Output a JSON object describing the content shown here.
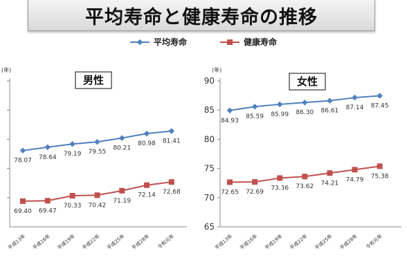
{
  "title": "平均寿命と健康寿命の推移",
  "legend": {
    "avg_label": "平均寿命",
    "healthy_label": "健康寿命"
  },
  "colors": {
    "avg": "#4f81bd",
    "healthy": "#c0504d",
    "axis": "#888888",
    "label": "#333333"
  },
  "chart_data": [
    {
      "type": "line",
      "title": "男性",
      "ylabel": "(年)",
      "categories": [
        "平成13年",
        "平成16年",
        "平成19年",
        "平成22年",
        "平成25年",
        "平成28年",
        "令和元年"
      ],
      "series": [
        {
          "name": "平均寿命",
          "values": [
            78.07,
            78.64,
            79.19,
            79.55,
            80.21,
            80.98,
            81.41
          ]
        },
        {
          "name": "健康寿命",
          "values": [
            69.4,
            69.47,
            70.33,
            70.42,
            71.19,
            72.14,
            72.68
          ]
        }
      ],
      "ylim": [
        65,
        90
      ],
      "yticks": [],
      "grid": false
    },
    {
      "type": "line",
      "title": "女性",
      "ylabel": "(年)",
      "categories": [
        "平成13年",
        "平成16年",
        "平成19年",
        "平成22年",
        "平成25年",
        "平成28年",
        "令和元年"
      ],
      "series": [
        {
          "name": "平均寿命",
          "values": [
            84.93,
            85.59,
            85.99,
            86.3,
            86.61,
            87.14,
            87.45
          ]
        },
        {
          "name": "健康寿命",
          "values": [
            72.65,
            72.69,
            73.36,
            73.62,
            74.21,
            74.79,
            75.38
          ]
        }
      ],
      "ylim": [
        65,
        90
      ],
      "yticks": [
        90,
        85,
        80,
        75,
        70,
        65
      ],
      "grid": false
    }
  ]
}
